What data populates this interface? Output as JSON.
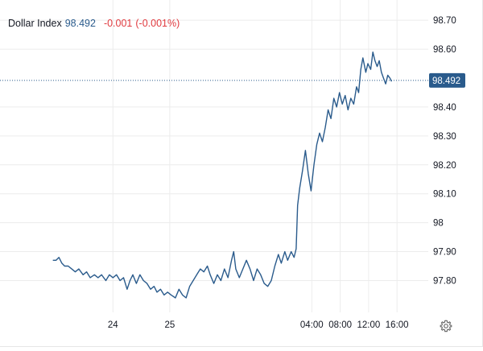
{
  "legend": {
    "symbol": "Dollar Index",
    "last": "98.492",
    "change": "-0.001",
    "change_pct": "(-0.001%)"
  },
  "colors": {
    "line": "#2a5b8c",
    "price_label_bg": "#2a5b8c",
    "price_line": "#2a5b8c",
    "grid": "#ececec",
    "negative": "#e0393e",
    "text": "#131722"
  },
  "icons": {
    "settings": "gear-icon"
  },
  "chart_data": {
    "type": "line",
    "title": "",
    "xlabel": "",
    "ylabel": "",
    "ylim": [
      97.69,
      98.77
    ],
    "x_range_hours": [
      -15.9,
      44.4
    ],
    "y_ticks": [
      {
        "value": 98.7,
        "label": "98.70"
      },
      {
        "value": 98.6,
        "label": "98.60"
      },
      {
        "value": 98.4,
        "label": "98.40"
      },
      {
        "value": 98.3,
        "label": "98.30"
      },
      {
        "value": 98.2,
        "label": "98.20"
      },
      {
        "value": 98.1,
        "label": "98.10"
      },
      {
        "value": 98.0,
        "label": "98"
      },
      {
        "value": 97.9,
        "label": "97.90"
      },
      {
        "value": 97.8,
        "label": "97.80"
      }
    ],
    "x_ticks": [
      {
        "value": 0,
        "label": "24"
      },
      {
        "value": 8,
        "label": "25"
      },
      {
        "value": 28,
        "label": "04:00"
      },
      {
        "value": 32,
        "label": "08:00"
      },
      {
        "value": 36,
        "label": "12:00"
      },
      {
        "value": 40,
        "label": "16:00"
      }
    ],
    "current_price": {
      "value": 98.492,
      "label": "98.492"
    },
    "grid": true,
    "series": [
      {
        "points": [
          [
            -8.4,
            97.87
          ],
          [
            -8.0,
            97.87
          ],
          [
            -7.6,
            97.88
          ],
          [
            -7.2,
            97.86
          ],
          [
            -6.8,
            97.85
          ],
          [
            -6.3,
            97.85
          ],
          [
            -5.8,
            97.84
          ],
          [
            -5.3,
            97.83
          ],
          [
            -4.8,
            97.84
          ],
          [
            -4.2,
            97.82
          ],
          [
            -3.7,
            97.83
          ],
          [
            -3.2,
            97.81
          ],
          [
            -2.6,
            97.82
          ],
          [
            -2.1,
            97.81
          ],
          [
            -1.6,
            97.82
          ],
          [
            -1.0,
            97.8
          ],
          [
            -0.5,
            97.82
          ],
          [
            0.0,
            97.81
          ],
          [
            0.5,
            97.82
          ],
          [
            1.0,
            97.8
          ],
          [
            1.5,
            97.81
          ],
          [
            2.0,
            97.77
          ],
          [
            2.4,
            97.8
          ],
          [
            2.8,
            97.82
          ],
          [
            3.3,
            97.79
          ],
          [
            3.8,
            97.82
          ],
          [
            4.3,
            97.8
          ],
          [
            4.8,
            97.79
          ],
          [
            5.3,
            97.77
          ],
          [
            5.8,
            97.78
          ],
          [
            6.2,
            97.76
          ],
          [
            6.7,
            97.77
          ],
          [
            7.2,
            97.75
          ],
          [
            7.7,
            97.76
          ],
          [
            8.2,
            97.75
          ],
          [
            8.8,
            97.74
          ],
          [
            9.3,
            97.77
          ],
          [
            9.8,
            97.75
          ],
          [
            10.3,
            97.74
          ],
          [
            10.8,
            97.78
          ],
          [
            11.3,
            97.8
          ],
          [
            11.8,
            97.82
          ],
          [
            12.3,
            97.84
          ],
          [
            12.8,
            97.83
          ],
          [
            13.3,
            97.85
          ],
          [
            13.7,
            97.82
          ],
          [
            14.2,
            97.79
          ],
          [
            14.7,
            97.82
          ],
          [
            15.2,
            97.8
          ],
          [
            15.7,
            97.84
          ],
          [
            16.2,
            97.81
          ],
          [
            16.7,
            97.87
          ],
          [
            17.0,
            97.9
          ],
          [
            17.3,
            97.84
          ],
          [
            17.8,
            97.81
          ],
          [
            18.3,
            97.84
          ],
          [
            18.8,
            97.87
          ],
          [
            19.3,
            97.84
          ],
          [
            19.8,
            97.8
          ],
          [
            20.3,
            97.84
          ],
          [
            20.8,
            97.82
          ],
          [
            21.3,
            97.79
          ],
          [
            21.8,
            97.78
          ],
          [
            22.3,
            97.8
          ],
          [
            22.8,
            97.85
          ],
          [
            23.3,
            97.89
          ],
          [
            23.7,
            97.86
          ],
          [
            24.2,
            97.9
          ],
          [
            24.6,
            97.87
          ],
          [
            25.1,
            97.9
          ],
          [
            25.5,
            97.88
          ],
          [
            25.8,
            97.91
          ],
          [
            26.0,
            98.06
          ],
          [
            26.3,
            98.12
          ],
          [
            26.7,
            98.18
          ],
          [
            27.1,
            98.25
          ],
          [
            27.5,
            98.17
          ],
          [
            27.9,
            98.11
          ],
          [
            28.3,
            98.2
          ],
          [
            28.7,
            98.27
          ],
          [
            29.1,
            98.31
          ],
          [
            29.5,
            98.28
          ],
          [
            29.9,
            98.33
          ],
          [
            30.3,
            98.39
          ],
          [
            30.7,
            98.36
          ],
          [
            31.1,
            98.43
          ],
          [
            31.5,
            98.4
          ],
          [
            31.9,
            98.45
          ],
          [
            32.3,
            98.41
          ],
          [
            32.7,
            98.44
          ],
          [
            33.1,
            98.39
          ],
          [
            33.5,
            98.43
          ],
          [
            33.9,
            98.41
          ],
          [
            34.3,
            98.47
          ],
          [
            34.6,
            98.45
          ],
          [
            34.9,
            98.53
          ],
          [
            35.2,
            98.57
          ],
          [
            35.6,
            98.52
          ],
          [
            35.9,
            98.55
          ],
          [
            36.3,
            98.53
          ],
          [
            36.6,
            98.59
          ],
          [
            36.9,
            98.56
          ],
          [
            37.2,
            98.54
          ],
          [
            37.5,
            98.56
          ],
          [
            37.8,
            98.52
          ],
          [
            38.1,
            98.5
          ],
          [
            38.4,
            98.48
          ],
          [
            38.7,
            98.51
          ],
          [
            39.0,
            98.5
          ],
          [
            39.2,
            98.49
          ]
        ]
      }
    ]
  }
}
